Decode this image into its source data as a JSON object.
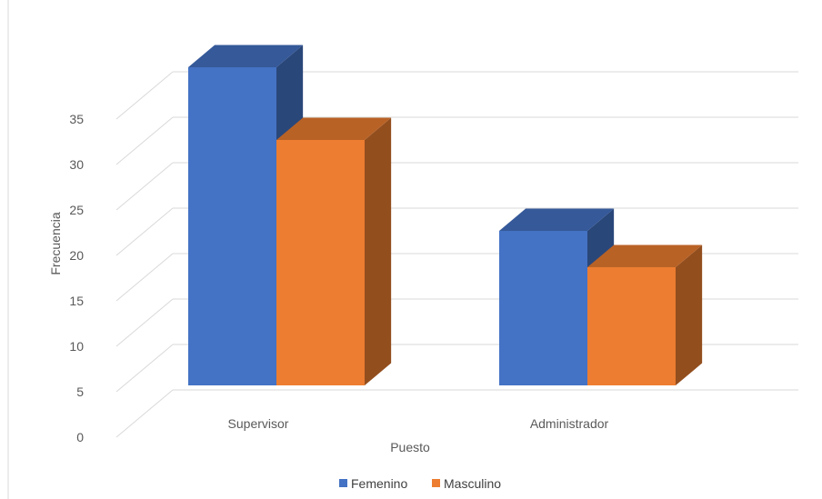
{
  "chart_data": {
    "type": "bar",
    "title": "",
    "xlabel": "Puesto",
    "ylabel": "Frecuencia",
    "categories": [
      "Supervisor",
      "Administrador"
    ],
    "series": [
      {
        "name": "Femenino",
        "values": [
          35,
          17
        ],
        "color": "#4472C4"
      },
      {
        "name": "Masculino",
        "values": [
          27,
          13
        ],
        "color": "#ED7D31"
      }
    ],
    "ylim": [
      0,
      35
    ],
    "yticks": [
      0,
      5,
      10,
      15,
      20,
      25,
      30,
      35
    ],
    "grid": true,
    "legend": "bottom",
    "style": "3d-clustered-column"
  }
}
